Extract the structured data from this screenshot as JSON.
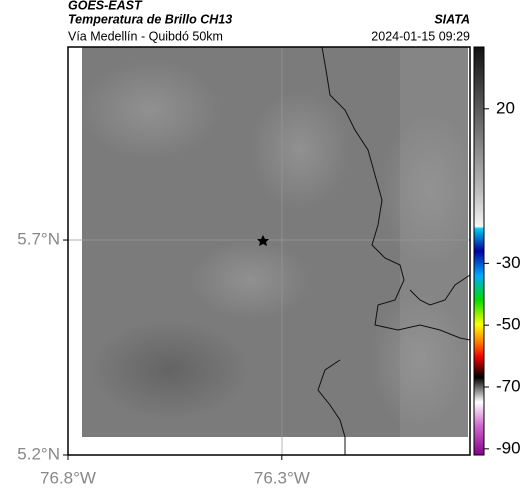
{
  "header": {
    "satellite": "GOES-EAST",
    "product": "Temperatura de Brillo CH13",
    "source": "SIATA",
    "route": "Vía Medellín - Quibdó 50km",
    "timestamp": "2024-01-15 09:29"
  },
  "map": {
    "xlim": [
      -76.8,
      -75.86
    ],
    "ylim": [
      5.2,
      6.149
    ],
    "xticks": [
      {
        "value": -76.8,
        "label": "76.8°W"
      },
      {
        "value": -76.3,
        "label": "76.3°W"
      }
    ],
    "yticks": [
      {
        "value": 5.2,
        "label": "5.2°N"
      },
      {
        "value": 5.7,
        "label": "5.7°N"
      }
    ]
  },
  "colorbar": {
    "lim": [
      -92,
      40
    ],
    "ticks": [
      20,
      -30,
      -50,
      -70,
      -90
    ]
  }
}
